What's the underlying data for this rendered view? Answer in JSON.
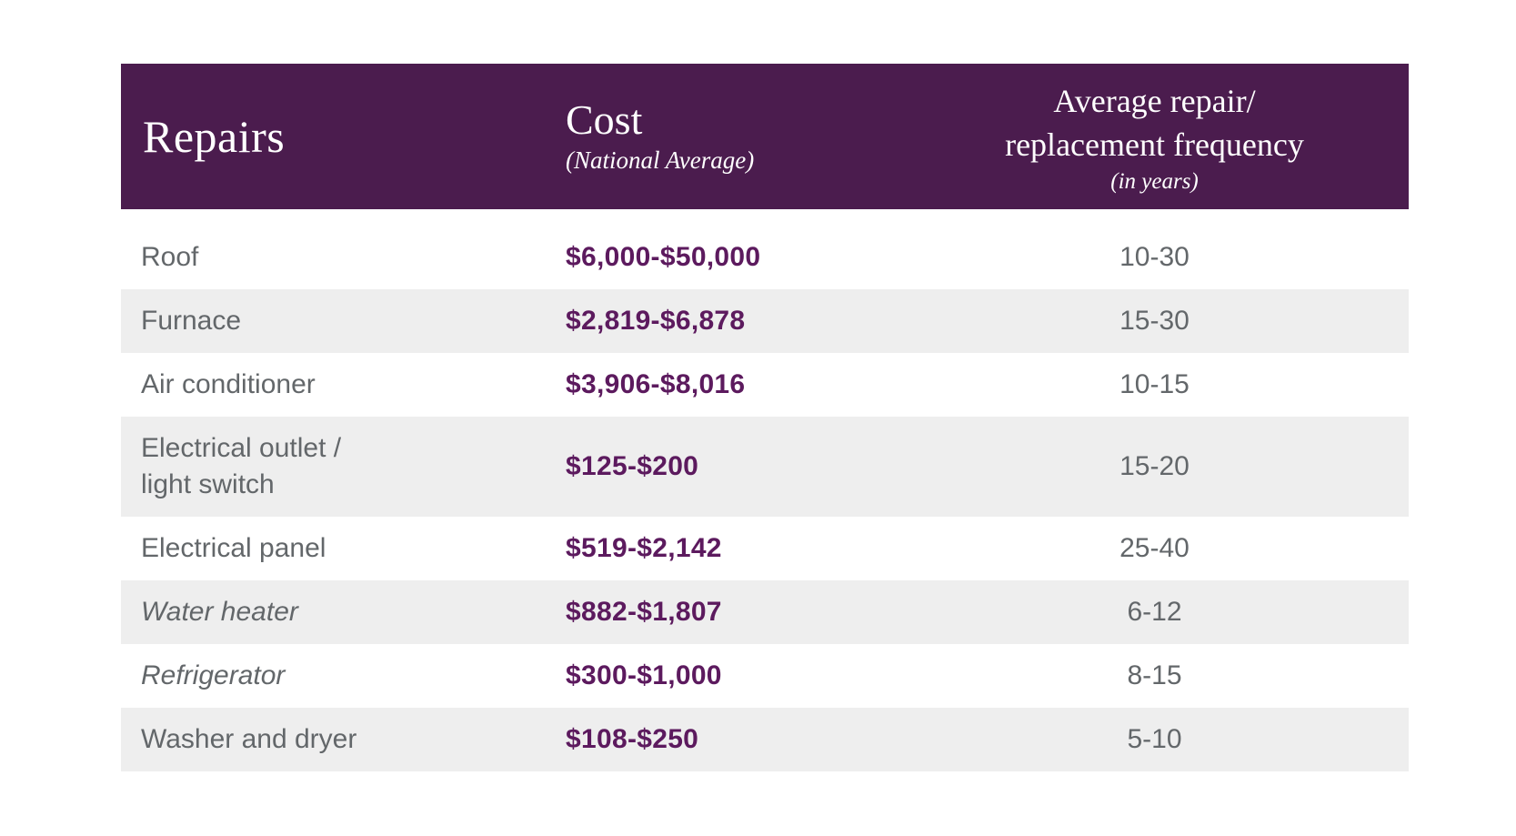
{
  "chart_data": {
    "type": "table",
    "header": {
      "repairs_title": "Repairs",
      "cost_title": "Cost",
      "cost_subtitle": "(National Average)",
      "frequency_title_line1": "Average repair/",
      "frequency_title_line2": "replacement frequency",
      "frequency_subtitle": "(in years)"
    },
    "rows": [
      {
        "repair": "Roof",
        "cost": "$6,000-$50,000",
        "frequency": "10-30",
        "italic": false
      },
      {
        "repair": "Furnace",
        "cost": "$2,819-$6,878",
        "frequency": "15-30",
        "italic": false
      },
      {
        "repair": "Air conditioner",
        "cost": "$3,906-$8,016",
        "frequency": "10-15",
        "italic": false
      },
      {
        "repair": "Electrical outlet /\nlight switch",
        "cost": "$125-$200",
        "frequency": "15-20",
        "italic": false
      },
      {
        "repair": "Electrical panel",
        "cost": "$519-$2,142",
        "frequency": "25-40",
        "italic": false
      },
      {
        "repair": "Water heater",
        "cost": "$882-$1,807",
        "frequency": "6-12",
        "italic": true
      },
      {
        "repair": "Refrigerator",
        "cost": "$300-$1,000",
        "frequency": "8-15",
        "italic": true
      },
      {
        "repair": "Washer and dryer",
        "cost": "$108-$250",
        "frequency": "5-10",
        "italic": false
      }
    ],
    "colors": {
      "header_background": "#4B1C4E",
      "cost_text": "#5C1A5E",
      "body_text": "#63676A",
      "stripe_background": "#EEEEEE",
      "header_text": "#FFFFFF"
    },
    "layout": {
      "striped_rows": "even rows shaded",
      "cost_column_alignment": "left",
      "frequency_column_alignment": "center"
    }
  }
}
